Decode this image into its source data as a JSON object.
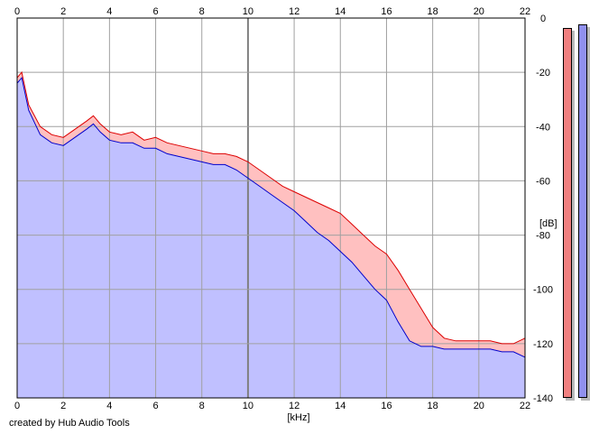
{
  "chart_data": {
    "type": "area",
    "title": "",
    "xlabel": "[kHz]",
    "ylabel": "[dB]",
    "xlim": [
      0,
      22
    ],
    "ylim": [
      -140,
      0
    ],
    "x_ticks": [
      "0",
      "2",
      "4",
      "6",
      "8",
      "10",
      "12",
      "14",
      "16",
      "18",
      "20",
      "22"
    ],
    "y_ticks": [
      "0",
      "-20",
      "-40",
      "-60",
      "-80",
      "-100",
      "-120",
      "-140"
    ],
    "grid": true,
    "series": [
      {
        "color": "#dd0000",
        "fill": "#ffc0c0",
        "x": [
          0,
          0.2,
          0.5,
          1,
          1.5,
          2,
          2.5,
          3,
          3.3,
          3.6,
          4,
          4.5,
          5,
          5.5,
          6,
          6.5,
          7,
          7.5,
          8,
          8.5,
          9,
          9.5,
          10,
          10.5,
          11,
          11.5,
          12,
          12.5,
          13,
          13.5,
          14,
          14.5,
          15,
          15.5,
          16,
          16.5,
          17,
          17.5,
          18,
          18.5,
          19,
          19.5,
          20,
          20.5,
          21,
          21.5,
          22
        ],
        "y": [
          -22,
          -20,
          -32,
          -40,
          -43,
          -44,
          -41,
          -38,
          -36,
          -39,
          -42,
          -43,
          -42,
          -45,
          -44,
          -46,
          -47,
          -48,
          -49,
          -50,
          -50,
          -51,
          -53,
          -56,
          -59,
          -62,
          -64,
          -66,
          -68,
          -70,
          -72,
          -76,
          -80,
          -84,
          -87,
          -93,
          -100,
          -107,
          -114,
          -118,
          -119,
          -119,
          -119,
          -119,
          -120,
          -120,
          -118
        ]
      },
      {
        "color": "#0000cc",
        "fill": "#c0c0ff",
        "x": [
          0,
          0.2,
          0.5,
          1,
          1.5,
          2,
          2.5,
          3,
          3.3,
          3.6,
          4,
          4.5,
          5,
          5.5,
          6,
          6.5,
          7,
          7.5,
          8,
          8.5,
          9,
          9.5,
          10,
          10.5,
          11,
          11.5,
          12,
          12.5,
          13,
          13.5,
          14,
          14.5,
          15,
          15.5,
          16,
          16.5,
          17,
          17.5,
          18,
          18.5,
          19,
          19.5,
          20,
          20.5,
          21,
          21.5,
          22
        ],
        "y": [
          -24,
          -22,
          -34,
          -43,
          -46,
          -47,
          -44,
          -41,
          -39,
          -42,
          -45,
          -46,
          -46,
          -48,
          -48,
          -50,
          -51,
          -52,
          -53,
          -54,
          -54,
          -56,
          -59,
          -62,
          -65,
          -68,
          -71,
          -75,
          -79,
          -82,
          -86,
          -90,
          -95,
          -100,
          -104,
          -112,
          -119,
          -121,
          -121,
          -122,
          -122,
          -122,
          -122,
          -122,
          -123,
          -123,
          -125
        ]
      }
    ],
    "meters": [
      {
        "color": "#f08080",
        "level_db": -4
      },
      {
        "color": "#9090ee",
        "level_db": -3
      }
    ]
  },
  "footer": {
    "credit": "created by Hub Audio Tools"
  }
}
